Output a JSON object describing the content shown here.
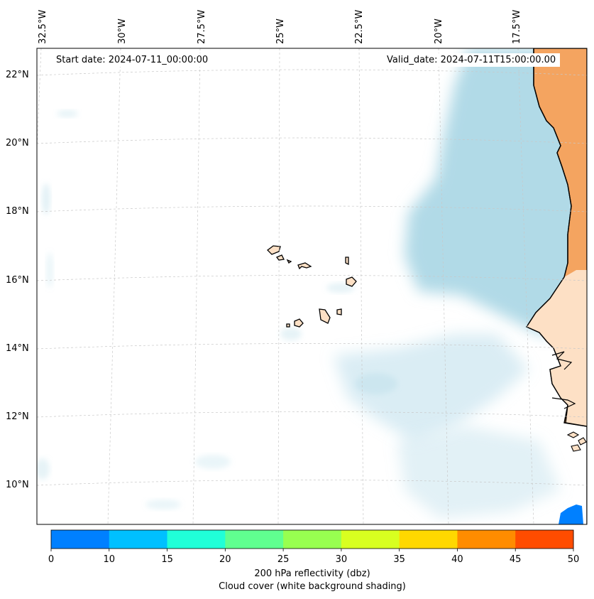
{
  "map": {
    "start_date": "Start date: 2024-07-11_00:00:00",
    "valid_date": "Valid_date: 2024-07-11T15:00:00.00",
    "longitude_labels": [
      "32.5°W",
      "30°W",
      "27.5°W",
      "25°W",
      "22.5°W",
      "20°W",
      "17.5°W"
    ],
    "latitude_labels": [
      "22°N",
      "20°N",
      "18°N",
      "16°N",
      "14°N",
      "12°N",
      "10°N"
    ],
    "colors": {
      "cloud": "#add8e6",
      "land_dry": "#f4a460",
      "land_light": "#fde0c5",
      "coast": "#000000"
    }
  },
  "colorbar": {
    "ticks": [
      "0",
      "10",
      "15",
      "20",
      "25",
      "30",
      "35",
      "40",
      "45",
      "50"
    ],
    "colors": [
      "#0080ff",
      "#00c0ff",
      "#20ffd8",
      "#60ff90",
      "#98ff50",
      "#d8ff20",
      "#ffd800",
      "#ff8c00",
      "#ff4c00"
    ],
    "label_line1": "200 hPa reflectivity (dbz)",
    "label_line2": "Cloud cover (white background shading)"
  }
}
